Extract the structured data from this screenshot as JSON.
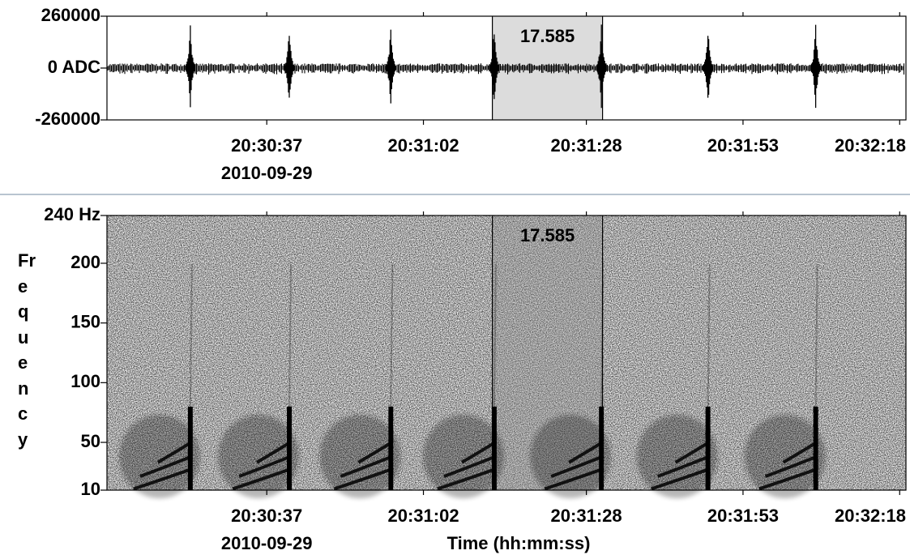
{
  "chart_data": [
    {
      "type": "waveform",
      "color": "#000000",
      "ylim": [
        -260000,
        260000
      ],
      "yticks": [
        260000,
        {
          "value": 0,
          "label": "0 ADC"
        },
        -260000
      ],
      "xlim": [
        73811.5,
        73939
      ],
      "xticks": [
        {
          "value": 73837,
          "label": "20:30:37"
        },
        {
          "value": 73862,
          "label": "20:31:02"
        },
        {
          "value": 73888,
          "label": "20:31:28"
        },
        {
          "value": 73913,
          "label": "20:31:53"
        },
        {
          "value": 73938,
          "label": "20:32:18"
        }
      ],
      "date": "2010-09-29",
      "x": [
        73824.8,
        73840.6,
        73856.8,
        73873.3,
        73890.4,
        73907.4,
        73924.6
      ],
      "values": [
        230000,
        230000,
        230000,
        230000,
        230000,
        230000,
        230000
      ],
      "noise": 18000,
      "selection": {
        "start": 73873.0,
        "duration": 17.585
      }
    },
    {
      "type": "spectrogram",
      "color": "#000000",
      "ylim": [
        10,
        240
      ],
      "yticks": [
        {
          "value": 240,
          "label": "240 Hz"
        },
        200,
        150,
        100,
        50,
        10
      ],
      "ylabel": "Frequency",
      "xlabel": "Time (hh:mm:ss)",
      "xlim": [
        73811.5,
        73939
      ],
      "xticks": [
        {
          "value": 73837,
          "label": "20:30:37"
        },
        {
          "value": 73862,
          "label": "20:31:02"
        },
        {
          "value": 73888,
          "label": "20:31:28"
        },
        {
          "value": 73913,
          "label": "20:31:53"
        },
        {
          "value": 73938,
          "label": "20:32:18"
        }
      ],
      "date": "2010-09-29",
      "x": [
        73824.8,
        73840.6,
        73856.8,
        73873.3,
        73890.4,
        73907.4,
        73924.6
      ],
      "values": [
        80,
        80,
        80,
        80,
        80,
        80,
        80
      ],
      "selection": {
        "start": 73873.0,
        "duration": 17.585
      }
    }
  ]
}
